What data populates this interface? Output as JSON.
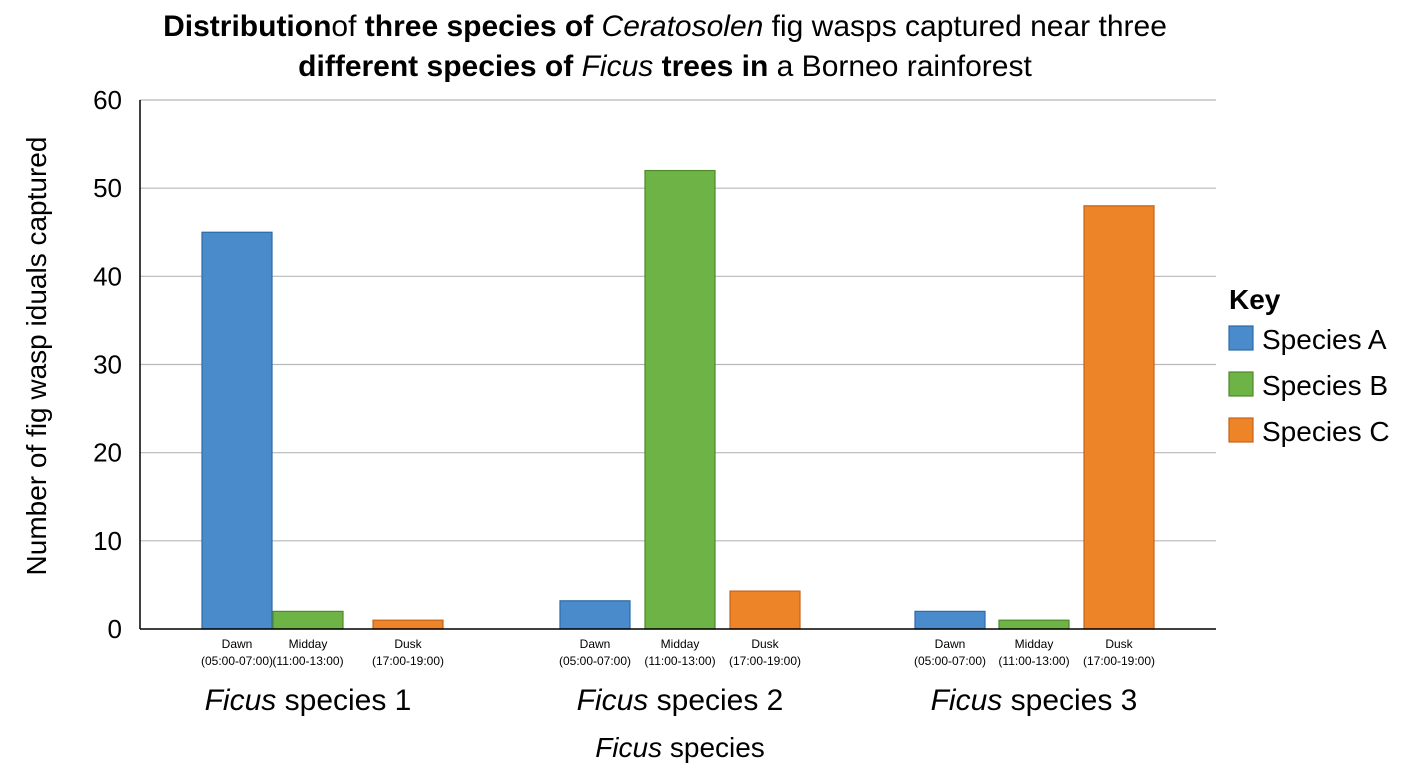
{
  "chart_data": {
    "type": "bar",
    "title": {
      "line1": [
        {
          "text": "Distribution",
          "weight": "bold"
        },
        {
          "text": "of ",
          "weight": "normal"
        },
        {
          "text": "three species of ",
          "weight": "bold"
        },
        {
          "text": "Ceratosolen",
          "style": "italic"
        },
        {
          "text": " fig wasps captured near three",
          "weight": "normal"
        }
      ],
      "line2": [
        {
          "text": "different species of ",
          "weight": "bold"
        },
        {
          "text": "Ficus",
          "style": "italic"
        },
        {
          "text": " trees in",
          "weight": "bold"
        },
        {
          "text": " a Borneo rainforest",
          "weight": "normal"
        }
      ]
    },
    "ylabel": "Number of fig  wasp iduals captured",
    "xlabel": {
      "italic": "Ficus",
      "rest": " species"
    },
    "ylim": [
      0,
      60
    ],
    "yticks": [
      0,
      10,
      20,
      30,
      40,
      50,
      60
    ],
    "grid": true,
    "legend_position": "right",
    "legend_title": "Key",
    "groups": [
      {
        "label_italic": "Ficus",
        "label_rest": " species 1",
        "bars": [
          {
            "time": "Dawn",
            "range": "(05:00-07:00)",
            "series": "Species A",
            "value": 45
          },
          {
            "time": "Midday",
            "range": "(11:00-13:00)",
            "series": "Species B",
            "value": 2
          },
          {
            "time": "Dusk",
            "range": "(17:00-19:00)",
            "series": "Species C",
            "value": 1
          }
        ]
      },
      {
        "label_italic": "Ficus",
        "label_rest": " species 2",
        "bars": [
          {
            "time": "Dawn",
            "range": "(05:00-07:00)",
            "series": "Species A",
            "value": 3.2
          },
          {
            "time": "Midday",
            "range": "(11:00-13:00)",
            "series": "Species B",
            "value": 52
          },
          {
            "time": "Dusk",
            "range": "(17:00-19:00)",
            "series": "Species C",
            "value": 4.3
          }
        ]
      },
      {
        "label_italic": "Ficus",
        "label_rest": " species 3",
        "bars": [
          {
            "time": "Dawn",
            "range": "(05:00-07:00)",
            "series": "Species A",
            "value": 2
          },
          {
            "time": "Midday",
            "range": "(11:00-13:00)",
            "series": "Species B",
            "value": 1
          },
          {
            "time": "Dusk",
            "range": "(17:00-19:00)",
            "series": "Species C",
            "value": 48
          }
        ]
      }
    ],
    "series": [
      {
        "name": "Species A",
        "color": "#4a8ccb",
        "stroke": "#2d6aa6"
      },
      {
        "name": "Species B",
        "color": "#6db345",
        "stroke": "#4d8a2c"
      },
      {
        "name": "Species C",
        "color": "#ee8428",
        "stroke": "#c4631a"
      }
    ]
  }
}
